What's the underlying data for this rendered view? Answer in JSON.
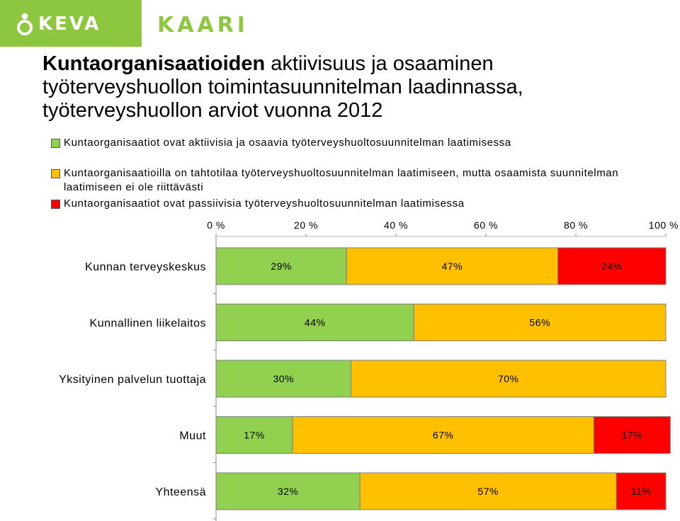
{
  "logos": {
    "keva": "KEVA",
    "kaari": "KAARI"
  },
  "title": {
    "bold": "Kuntaorganisaatioiden",
    "rest_line1": " aktiivisuus ja osaaminen",
    "line2": "työterveyshuollon toimintasuunnitelman laadinnassa,",
    "line3": "työterveyshuollon arviot vuonna 2012"
  },
  "chart_data": {
    "type": "bar",
    "orientation": "horizontal",
    "stacked": true,
    "percent": true,
    "categories": [
      "Kunnan terveyskeskus",
      "Kunnallinen liikelaitos",
      "Yksityinen palvelun tuottaja",
      "Muut",
      "Yhteensä"
    ],
    "series": [
      {
        "name": "Kuntaorganisaatiot ovat aktiivisia ja osaavia työterveyshuoltosuunnitelman laatimisessa",
        "color": "#92d050",
        "values": [
          29,
          44,
          30,
          17,
          32
        ],
        "labels": [
          "29%",
          "44%",
          "30%",
          "17%",
          "32%"
        ]
      },
      {
        "name": "Kuntaorganisaatioilla on tahtotilaa työterveyshuoltosuunnitelman laatimiseen, mutta osaamista suunnitelman laatimiseen ei ole riittävästi",
        "color": "#ffc000",
        "values": [
          47,
          56,
          70,
          67,
          57
        ],
        "labels": [
          "47%",
          "56%",
          "70%",
          "67%",
          "57%"
        ]
      },
      {
        "name": "Kuntaorganisaatiot ovat passiivisia työterveyshuoltosuunnitelman laatimisessa",
        "color": "#ff0000",
        "values": [
          24,
          0,
          0,
          17,
          11
        ],
        "labels": [
          "24%",
          "",
          "",
          "17%",
          "11%"
        ]
      }
    ],
    "xlim": [
      0,
      100
    ],
    "xticks": [
      "0 %",
      "20 %",
      "40 %",
      "60 %",
      "80 %",
      "100 %"
    ],
    "axis_position": "top",
    "legend_position": "top",
    "grid": false
  }
}
